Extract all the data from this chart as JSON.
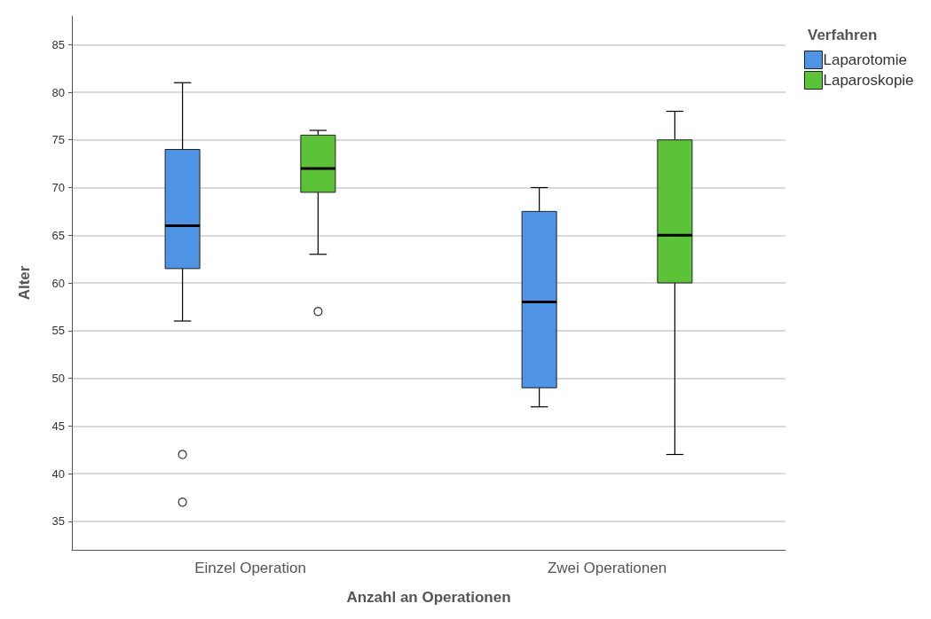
{
  "chart_data": {
    "type": "box",
    "xlabel": "Anzahl an Operationen",
    "ylabel": "Alter",
    "legend_title": "Verfahren",
    "categories": [
      "Einzel Operation",
      "Zwei Operationen"
    ],
    "series": [
      {
        "name": "Laparotomie",
        "color": "#4f94e4",
        "boxes": [
          {
            "low": 56,
            "q1": 61.5,
            "median": 66,
            "q3": 74,
            "high": 81,
            "outliers": [
              42,
              37
            ]
          },
          {
            "low": 47,
            "q1": 49,
            "median": 58,
            "q3": 67.5,
            "high": 70
          }
        ]
      },
      {
        "name": "Laparoskopie",
        "color": "#5cc238",
        "boxes": [
          {
            "low": 63,
            "q1": 69.5,
            "median": 72,
            "q3": 75.5,
            "high": 76,
            "outliers": [
              57
            ]
          },
          {
            "low": 42,
            "q1": 60,
            "median": 65,
            "q3": 75,
            "high": 78
          }
        ]
      }
    ],
    "ylim": [
      32,
      88
    ],
    "yticks": [
      35,
      40,
      45,
      50,
      55,
      60,
      65,
      70,
      75,
      80,
      85
    ],
    "grid": "y",
    "legend": "top right"
  }
}
